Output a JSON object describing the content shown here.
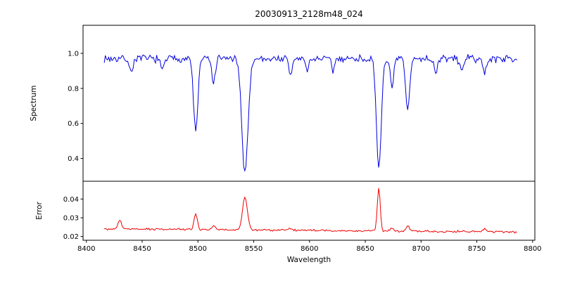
{
  "chart_data": [
    {
      "type": "line",
      "panel": "spectrum",
      "title": "20030913_2128m48_024",
      "ylabel": "Spectrum",
      "series_color": "#0000dd",
      "xlim": [
        8397,
        8802
      ],
      "x_range": [
        8416,
        8786
      ],
      "ylim": [
        0.27,
        1.16
      ],
      "yticks": {
        "values": [
          1.0,
          0.8,
          0.6,
          0.4
        ],
        "labels": [
          "1.0",
          "0.8",
          "0.6",
          "0.4"
        ]
      },
      "baseline": 0.97,
      "noise_amplitude": 0.026,
      "noise_seed": 7,
      "sample_step": 1.0,
      "absorption_lines": [
        {
          "center": 8440.0,
          "depth": 0.08,
          "sigma": 1.5
        },
        {
          "center": 8468.0,
          "depth": 0.07,
          "sigma": 1.5
        },
        {
          "center": 8498.0,
          "depth": 0.42,
          "sigma": 1.9
        },
        {
          "center": 8514.0,
          "depth": 0.14,
          "sigma": 1.6
        },
        {
          "center": 8542.1,
          "depth": 0.645,
          "sigma": 2.8
        },
        {
          "center": 8583.0,
          "depth": 0.09,
          "sigma": 1.6
        },
        {
          "center": 8598.0,
          "depth": 0.07,
          "sigma": 1.4
        },
        {
          "center": 8621.0,
          "depth": 0.07,
          "sigma": 1.4
        },
        {
          "center": 8662.1,
          "depth": 0.625,
          "sigma": 2.2
        },
        {
          "center": 8674.0,
          "depth": 0.18,
          "sigma": 1.5
        },
        {
          "center": 8688.0,
          "depth": 0.3,
          "sigma": 1.8
        },
        {
          "center": 8713.0,
          "depth": 0.08,
          "sigma": 1.5
        },
        {
          "center": 8736.0,
          "depth": 0.07,
          "sigma": 1.5
        },
        {
          "center": 8757.0,
          "depth": 0.09,
          "sigma": 1.5
        }
      ]
    },
    {
      "type": "line",
      "panel": "error",
      "ylabel": "Error",
      "xlabel": "Wavelength",
      "series_color": "#ee0000",
      "xlim": [
        8397,
        8802
      ],
      "x_range": [
        8416,
        8786
      ],
      "ylim": [
        0.018,
        0.0495
      ],
      "yticks": {
        "values": [
          0.04,
          0.03,
          0.02
        ],
        "labels": [
          "0.04",
          "0.03",
          "0.02"
        ]
      },
      "baseline_start": 0.0241,
      "baseline_end": 0.0224,
      "noise_amplitude": 0.00065,
      "noise_seed": 99,
      "sample_step": 1.0,
      "emission_spikes": [
        {
          "center": 8430.0,
          "height": 0.0048,
          "sigma": 1.5
        },
        {
          "center": 8498.0,
          "height": 0.0085,
          "sigma": 1.5
        },
        {
          "center": 8514.0,
          "height": 0.002,
          "sigma": 1.5
        },
        {
          "center": 8542.1,
          "height": 0.0175,
          "sigma": 2.2
        },
        {
          "center": 8583.0,
          "height": 0.0012,
          "sigma": 1.5
        },
        {
          "center": 8662.1,
          "height": 0.0228,
          "sigma": 1.3
        },
        {
          "center": 8674.0,
          "height": 0.0018,
          "sigma": 1.3
        },
        {
          "center": 8688.0,
          "height": 0.003,
          "sigma": 1.5
        },
        {
          "center": 8757.0,
          "height": 0.0015,
          "sigma": 1.5
        }
      ]
    }
  ],
  "xticks": {
    "values": [
      8400,
      8450,
      8500,
      8550,
      8600,
      8650,
      8700,
      8750,
      8800
    ],
    "labels": [
      "8400",
      "8450",
      "8500",
      "8550",
      "8600",
      "8650",
      "8700",
      "8750",
      "8800"
    ]
  },
  "axis_color": "#000000",
  "background_color": "#ffffff"
}
